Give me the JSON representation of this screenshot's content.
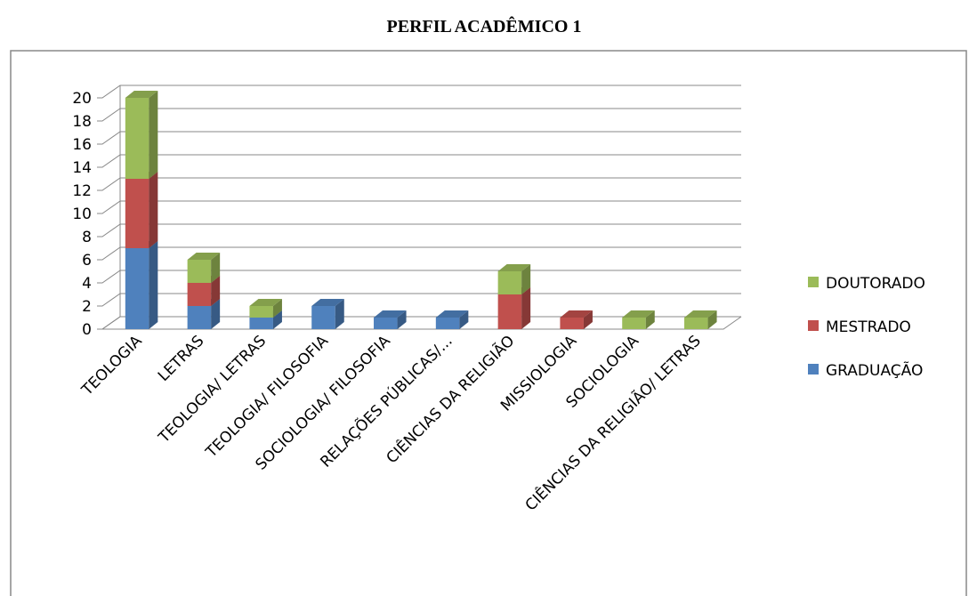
{
  "chart_data": {
    "type": "bar3d_stacked",
    "title": "PERFIL ACADÊMICO 1",
    "categories": [
      "TEOLOGIA",
      "LETRAS",
      "TEOLOGIA/ LETRAS",
      "TEOLOGIA/ FILOSOFIA",
      "SOCIOLOGIA/ FILOSOFIA",
      "RELAÇÕES PÚBLICAS/...",
      "CIÊNCIAS DA RELIGIÃO",
      "MISSIOLOGIA",
      "SOCIOLOGIA",
      "CIÊNCIAS DA RELIGIÃO/ LETRAS"
    ],
    "series": [
      {
        "name": "GRADUAÇÃO",
        "color": "#4f81bd",
        "values": [
          7,
          2,
          1,
          2,
          1,
          1,
          0,
          0,
          0,
          0
        ]
      },
      {
        "name": "MESTRADO",
        "color": "#c0504d",
        "values": [
          6,
          2,
          0,
          0,
          0,
          0,
          3,
          1,
          0,
          0
        ]
      },
      {
        "name": "DOUTORADO",
        "color": "#9bbb59",
        "values": [
          7,
          2,
          1,
          0,
          0,
          0,
          2,
          0,
          1,
          1
        ]
      }
    ],
    "ylim": [
      0,
      20
    ],
    "yticks": [
      0,
      2,
      4,
      6,
      8,
      10,
      12,
      14,
      16,
      18,
      20
    ],
    "grid": true,
    "legend": "right"
  }
}
